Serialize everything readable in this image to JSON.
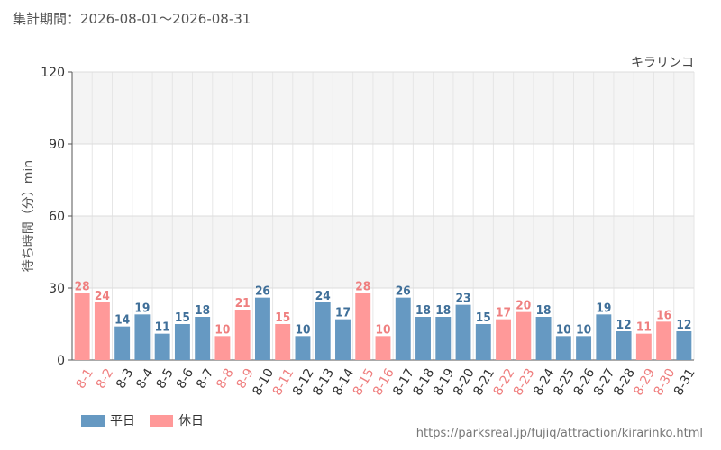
{
  "period": {
    "label": "集計期間：2026-08-01〜2026-08-31"
  },
  "source_url": "https://parksreal.jp/fujiq/attraction/kirarinko.html",
  "chart_data": {
    "type": "bar",
    "title": "キラリンコ",
    "ylabel": "待ち時間（分）min",
    "xlabel": "",
    "ylim": [
      0,
      120
    ],
    "yticks": [
      0,
      30,
      60,
      90,
      120
    ],
    "grid": true,
    "categories": [
      "8-1",
      "8-2",
      "8-3",
      "8-4",
      "8-5",
      "8-6",
      "8-7",
      "8-8",
      "8-9",
      "8-10",
      "8-11",
      "8-12",
      "8-13",
      "8-14",
      "8-15",
      "8-16",
      "8-17",
      "8-18",
      "8-19",
      "8-20",
      "8-21",
      "8-22",
      "8-23",
      "8-24",
      "8-25",
      "8-26",
      "8-27",
      "8-28",
      "8-29",
      "8-30",
      "8-31"
    ],
    "values": [
      28,
      24,
      14,
      19,
      11,
      15,
      18,
      10,
      21,
      26,
      15,
      10,
      24,
      17,
      28,
      10,
      26,
      18,
      18,
      23,
      15,
      17,
      20,
      18,
      10,
      10,
      19,
      12,
      11,
      16,
      12
    ],
    "day_type": [
      "holiday",
      "holiday",
      "weekday",
      "weekday",
      "weekday",
      "weekday",
      "weekday",
      "holiday",
      "holiday",
      "weekday",
      "holiday",
      "weekday",
      "weekday",
      "weekday",
      "holiday",
      "holiday",
      "weekday",
      "weekday",
      "weekday",
      "weekday",
      "weekday",
      "holiday",
      "holiday",
      "weekday",
      "weekday",
      "weekday",
      "weekday",
      "weekday",
      "holiday",
      "holiday",
      "weekday"
    ],
    "legend": [
      {
        "key": "weekday",
        "name": "平日",
        "color": "#6699c2"
      },
      {
        "key": "holiday",
        "name": "休日",
        "color": "#ff9999"
      }
    ],
    "label_colors": {
      "weekday": "#3f6f99",
      "holiday": "#ef7f7f"
    },
    "tick_colors": {
      "weekday": "#333333",
      "holiday": "#ef7f7f"
    },
    "legend_position": "bottom-left"
  }
}
